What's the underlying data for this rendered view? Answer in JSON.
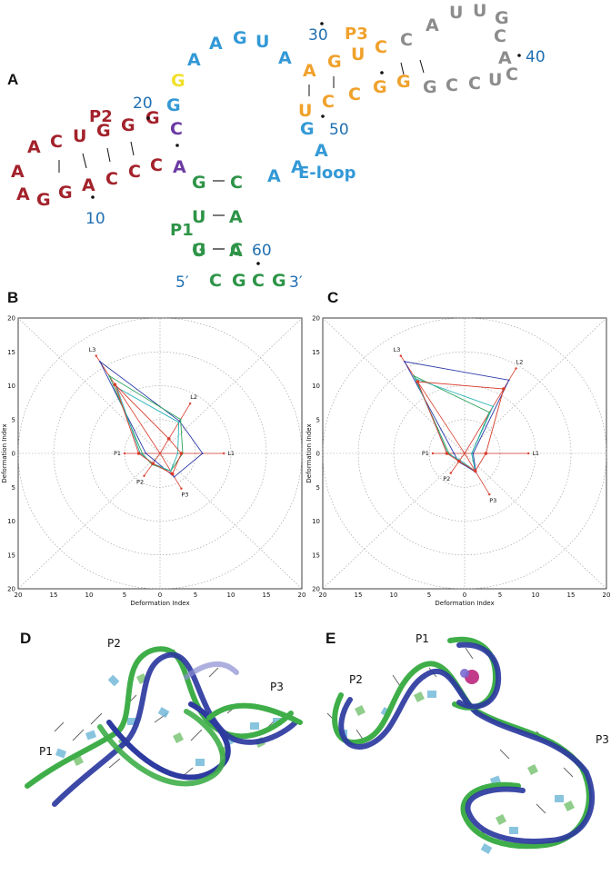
{
  "panel_letters": {
    "a": "A",
    "b": "B",
    "c": "C",
    "d": "D",
    "e": "E"
  },
  "colors": {
    "p2": "#a3222b",
    "loop": "#3399d6",
    "p3": "#f0a12b",
    "gray": "#8c8c8c",
    "p1": "#2e9448",
    "purple": "#6b3aa3",
    "yellow": "#f0e02b",
    "num": "#1f6fb2"
  },
  "secondary_structure": {
    "labels": {
      "p1": "P1",
      "p2": "P2",
      "p3": "P3",
      "eloop": "E-loop",
      "five": "5′",
      "three": "3′"
    },
    "numbers": [
      "10",
      "20",
      "30",
      "40",
      "50",
      "60"
    ]
  },
  "panel_d": {
    "labels": [
      "P1",
      "P2",
      "P3"
    ]
  },
  "panel_e": {
    "labels": [
      "P1",
      "P2",
      "P3"
    ]
  },
  "chart_data": [
    {
      "type": "radar",
      "panel": "B",
      "xlabel": "Deformation Index",
      "ylabel": "Deformation Index",
      "xticks": [
        "20",
        "15",
        "10",
        "5",
        "0",
        "5",
        "10",
        "15",
        "20"
      ],
      "yticks": [
        "20",
        "15",
        "10",
        "5",
        "0",
        "5",
        "10",
        "15",
        "20"
      ],
      "rlim": [
        0,
        20
      ],
      "grid": true,
      "axes": [
        "L1",
        "L2",
        "L3",
        "P1",
        "P2",
        "P3"
      ],
      "series": [
        {
          "color": "#2b3aa8",
          "values": [
            6.0,
            5.5,
            16.0,
            2.0,
            1.3,
            4.0
          ]
        },
        {
          "color": "#2aa35c",
          "values": [
            3.2,
            5.8,
            13.5,
            2.5,
            2.0,
            3.0
          ]
        },
        {
          "color": "#27b3b5",
          "values": [
            2.5,
            5.3,
            11.5,
            2.8,
            1.8,
            3.0
          ]
        },
        {
          "color": "#d93b2b",
          "values": [
            3.0,
            2.5,
            12.0,
            3.0,
            1.8,
            3.5
          ]
        }
      ],
      "red_max_marks": [
        9.0,
        8.5,
        17.0,
        5.0,
        4.0,
        6.0
      ]
    },
    {
      "type": "radar",
      "panel": "C",
      "xlabel": "Deformation Index",
      "ylabel": "Deformation Index",
      "xticks": [
        "20",
        "15",
        "10",
        "5",
        "0",
        "5",
        "10",
        "15",
        "20"
      ],
      "yticks": [
        "20",
        "15",
        "10",
        "5",
        "0",
        "5",
        "10",
        "15",
        "20"
      ],
      "rlim": [
        0,
        20
      ],
      "grid": true,
      "axes": [
        "L1",
        "L2",
        "L3",
        "P1",
        "P2",
        "P3"
      ],
      "series": [
        {
          "color": "#2b3aa8",
          "values": [
            1.2,
            12.5,
            16.0,
            1.5,
            1.5,
            3.2
          ]
        },
        {
          "color": "#2aa35c",
          "values": [
            1.0,
            7.0,
            13.5,
            2.2,
            1.4,
            3.0
          ]
        },
        {
          "color": "#27b3b5",
          "values": [
            1.0,
            8.0,
            13.0,
            2.4,
            1.2,
            3.0
          ]
        },
        {
          "color": "#d93b2b",
          "values": [
            3.0,
            11.0,
            12.5,
            2.5,
            1.4,
            3.0
          ]
        }
      ],
      "red_max_marks": [
        9.0,
        14.5,
        17.0,
        4.5,
        3.5,
        7.0
      ]
    }
  ]
}
